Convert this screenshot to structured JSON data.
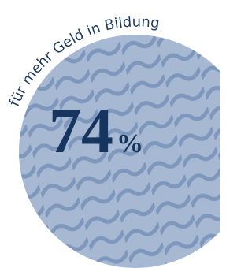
{
  "stat": {
    "caption": "für mehr Geld in Bildung",
    "value": "74",
    "unit": "%"
  }
}
